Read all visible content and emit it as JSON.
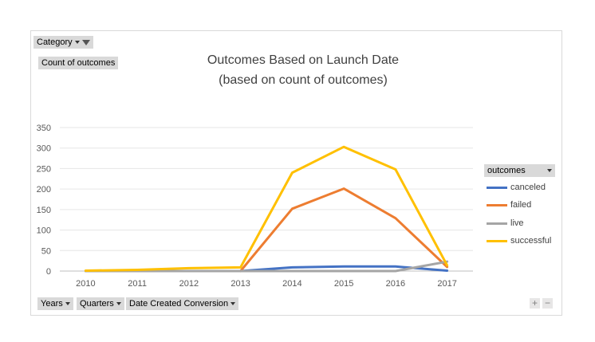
{
  "pivot": {
    "category_label": "Category",
    "values_label": "Count of outcomes",
    "legend_field_label": "outcomes",
    "axis_fields": [
      "Years",
      "Quarters",
      "Date Created Conversion"
    ],
    "zoom_in": "+",
    "zoom_out": "−"
  },
  "chart_data": {
    "type": "line",
    "title": "Outcomes Based on Launch Date",
    "subtitle": "(based on count of outcomes)",
    "xlabel": "",
    "ylabel": "",
    "categories": [
      "2010",
      "2011",
      "2012",
      "2013",
      "2014",
      "2015",
      "2016",
      "2017"
    ],
    "yticks": [
      "0",
      "50",
      "100",
      "150",
      "200",
      "250",
      "300",
      "350"
    ],
    "ylim": [
      0,
      350
    ],
    "grid": true,
    "legend_position": "right",
    "series": [
      {
        "name": "canceled",
        "color": "#4472c4",
        "values": [
          0,
          0,
          0,
          0,
          9,
          11,
          11,
          1
        ]
      },
      {
        "name": "failed",
        "color": "#ed7d31",
        "values": [
          null,
          null,
          null,
          0,
          152,
          201,
          129,
          10
        ]
      },
      {
        "name": "live",
        "color": "#a5a5a5",
        "values": [
          0,
          0,
          0,
          0,
          0,
          0,
          0,
          23
        ]
      },
      {
        "name": "successful",
        "color": "#ffc000",
        "values": [
          1,
          3,
          7,
          9,
          240,
          303,
          248,
          14
        ]
      }
    ]
  }
}
